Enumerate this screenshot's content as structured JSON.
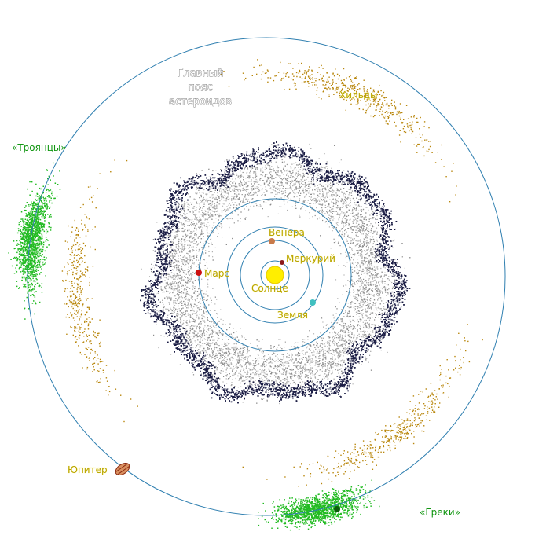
{
  "diagram": {
    "belt_label_lines": [
      "Главный",
      "пояс",
      "астероидов"
    ],
    "hildas_label": "Хильды",
    "trojans_label": "«Троянцы»",
    "greeks_label": "«Греки»",
    "jupiter_label": "Юпитер",
    "mars_label": "Марс",
    "venus_label": "Венера",
    "mercury_label": "Меркурий",
    "sun_label": "Солнце",
    "earth_label": "Земля"
  },
  "colors": {
    "orbit": "#2f7fb0",
    "sun": "#ffee00",
    "belt_dark": "#1b1d45",
    "belt_grey": "#8c8c8c",
    "hildas": "#b8860b",
    "trojans": "#22bb22",
    "mars": "#cc1111",
    "venus": "#c87a4a",
    "mercury": "#8b1a1a",
    "earth": "#40c0c0",
    "jupiter": "#b04020"
  }
}
